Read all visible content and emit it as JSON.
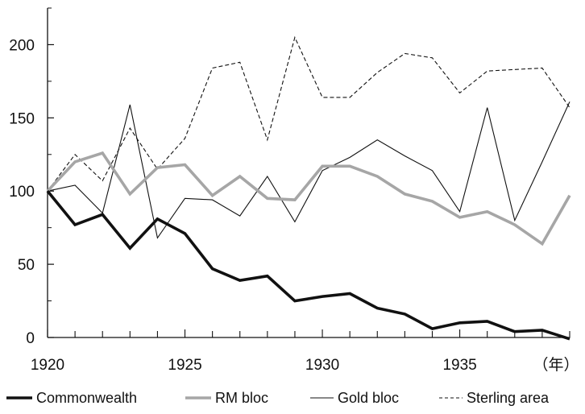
{
  "chart_data": {
    "type": "line",
    "x": [
      1920,
      1921,
      1922,
      1923,
      1924,
      1925,
      1926,
      1927,
      1928,
      1929,
      1930,
      1931,
      1932,
      1933,
      1934,
      1935,
      1936,
      1937,
      1938,
      1939
    ],
    "x_tick_labels": [
      "1920",
      "1925",
      "1930",
      "1935",
      "（年）"
    ],
    "x_tick_values": [
      1920,
      1925,
      1930,
      1935,
      1938.5
    ],
    "y_tick_labels": [
      "0",
      "50",
      "100",
      "150",
      "200"
    ],
    "y_tick_values": [
      0,
      50,
      100,
      150,
      200
    ],
    "ylim": [
      0,
      225
    ],
    "xlim": [
      1920,
      1939
    ],
    "grid": false,
    "legend_position": "bottom",
    "series": [
      {
        "name": "Commonwealth",
        "style": "thick-black",
        "color": "#111111",
        "values": [
          100,
          77,
          84,
          61,
          81,
          71,
          47,
          39,
          42,
          25,
          28,
          30,
          20,
          16,
          6,
          10,
          11,
          4,
          5,
          -1
        ]
      },
      {
        "name": "RM bloc",
        "style": "thick-gray",
        "color": "#a6a6a6",
        "values": [
          100,
          120,
          126,
          98,
          116,
          118,
          97,
          110,
          95,
          94,
          117,
          117,
          110,
          98,
          93,
          82,
          86,
          77,
          64,
          97
        ]
      },
      {
        "name": "Gold bloc",
        "style": "thin-black",
        "color": "#111111",
        "values": [
          100,
          104,
          85,
          159,
          68,
          95,
          94,
          83,
          110,
          79,
          114,
          123,
          135,
          124,
          114,
          86,
          157,
          80,
          120,
          161
        ]
      },
      {
        "name": "Sterling area",
        "style": "dashed",
        "color": "#111111",
        "values": [
          100,
          125,
          107,
          143,
          115,
          136,
          184,
          188,
          135,
          205,
          164,
          164,
          181,
          194,
          191,
          167,
          182,
          183,
          184,
          157
        ]
      }
    ]
  }
}
